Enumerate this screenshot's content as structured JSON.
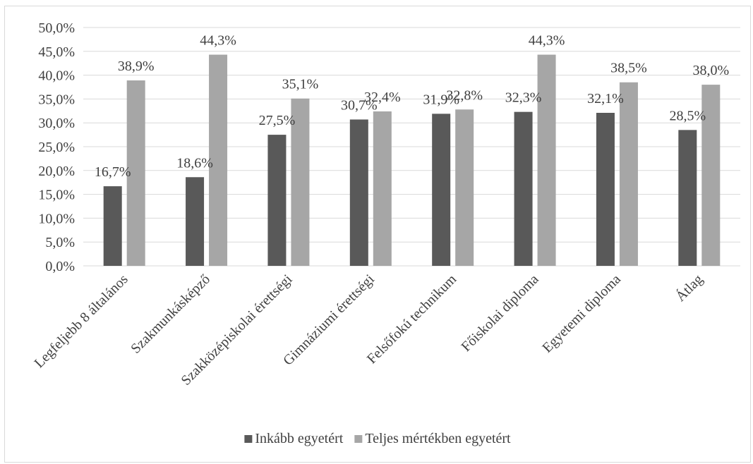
{
  "chart_data": {
    "type": "bar",
    "title": "",
    "xlabel": "",
    "ylabel": "",
    "categories": [
      "Legfeljebb 8 általános",
      "Szakmunkásképző",
      "Szakközépiskolai érettségi",
      "Gimnáziumi érettségi",
      "Felsőfokú technikum",
      "Főiskolai diploma",
      "Egyetemi diploma",
      "Átlag"
    ],
    "series": [
      {
        "name": "Inkább egyetért",
        "color": "#595959",
        "values": [
          16.7,
          18.6,
          27.5,
          30.7,
          31.9,
          32.3,
          32.1,
          28.5
        ],
        "labels": [
          "16,7%",
          "18,6%",
          "27,5%",
          "30,7%",
          "31,9%",
          "32,3%",
          "32,1%",
          "28,5%"
        ]
      },
      {
        "name": "Teljes mértékben egyetért",
        "color": "#a6a6a6",
        "values": [
          38.9,
          44.3,
          35.1,
          32.4,
          32.8,
          44.3,
          38.5,
          38.0
        ],
        "labels": [
          "38,9%",
          "44,3%",
          "35,1%",
          "32,4%",
          "32,8%",
          "44,3%",
          "38,5%",
          "38,0%"
        ]
      }
    ],
    "ylim": [
      0,
      50
    ],
    "yticks": [
      "0,0%",
      "5,0%",
      "10,0%",
      "15,0%",
      "20,0%",
      "25,0%",
      "30,0%",
      "35,0%",
      "40,0%",
      "45,0%",
      "50,0%"
    ],
    "grid": true,
    "legend_position": "bottom"
  }
}
